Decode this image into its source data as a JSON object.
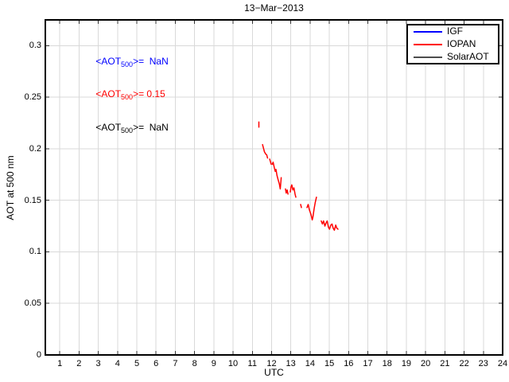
{
  "title": "13−Mar−2013",
  "axes": {
    "xlabel": "UTC",
    "ylabel": "AOT at 500 nm"
  },
  "legend": {
    "items": [
      {
        "label": "IGF",
        "color": "#0000ff"
      },
      {
        "label": "IOPAN",
        "color": "#ff0000"
      },
      {
        "label": "SolarAOT",
        "color": "#4d4d4d"
      }
    ]
  },
  "annotations": [
    {
      "prefix": "<AOT",
      "sub": "500",
      "suffix": ">=  NaN",
      "color": "#0000ff"
    },
    {
      "prefix": "<AOT",
      "sub": "500",
      "suffix": ">= 0.15",
      "color": "#ff0000"
    },
    {
      "prefix": "<AOT",
      "sub": "500",
      "suffix": ">=  NaN",
      "color": "#000000"
    }
  ],
  "colors": {
    "grid": "#d9d9d9",
    "axis_box": "#000000",
    "tick": "#333333",
    "background": "#ffffff"
  },
  "chart_data": {
    "type": "line",
    "title": "13-Mar-2013",
    "xlabel": "UTC",
    "ylabel": "AOT at 500 nm",
    "xlim": [
      0.25,
      24
    ],
    "ylim": [
      0,
      0.325
    ],
    "x_ticks": [
      1,
      2,
      3,
      4,
      5,
      6,
      7,
      8,
      9,
      10,
      11,
      12,
      13,
      14,
      15,
      16,
      17,
      18,
      19,
      20,
      21,
      22,
      23,
      24
    ],
    "y_tick_labels": [
      "0",
      "0.05",
      "0.1",
      "0.15",
      "0.2",
      "0.25",
      "0.3"
    ],
    "grid": true,
    "legend_position": "top-right",
    "series": [
      {
        "name": "IGF",
        "color": "#0000ff",
        "mean_aot_500": "NaN",
        "segments": []
      },
      {
        "name": "IOPAN",
        "color": "#ff0000",
        "mean_aot_500": "0.15",
        "segments": [
          [
            [
              11.34,
              0.226
            ],
            [
              11.34,
              0.221
            ]
          ],
          [
            [
              11.53,
              0.204
            ],
            [
              11.59,
              0.2
            ],
            [
              11.63,
              0.197
            ],
            [
              11.69,
              0.195
            ],
            [
              11.75,
              0.194
            ],
            [
              11.79,
              0.191
            ]
          ],
          [
            [
              11.9,
              0.19
            ],
            [
              11.98,
              0.185
            ]
          ],
          [
            [
              12.04,
              0.185
            ],
            [
              12.08,
              0.187
            ],
            [
              12.15,
              0.181
            ],
            [
              12.19,
              0.178
            ],
            [
              12.23,
              0.18
            ],
            [
              12.28,
              0.174
            ],
            [
              12.34,
              0.17
            ],
            [
              12.4,
              0.166
            ],
            [
              12.45,
              0.161
            ],
            [
              12.5,
              0.172
            ]
          ],
          [
            [
              12.72,
              0.161
            ],
            [
              12.76,
              0.157
            ],
            [
              12.81,
              0.16
            ],
            [
              12.85,
              0.156
            ]
          ],
          [
            [
              12.97,
              0.158
            ],
            [
              13.01,
              0.163
            ],
            [
              13.05,
              0.165
            ],
            [
              13.11,
              0.16
            ],
            [
              13.16,
              0.162
            ],
            [
              13.22,
              0.156
            ],
            [
              13.26,
              0.153
            ]
          ],
          [
            [
              13.51,
              0.146
            ],
            [
              13.55,
              0.143
            ]
          ],
          [
            [
              13.84,
              0.143
            ],
            [
              13.9,
              0.146
            ],
            [
              13.96,
              0.141
            ],
            [
              14.05,
              0.136
            ],
            [
              14.11,
              0.131
            ],
            [
              14.15,
              0.134
            ],
            [
              14.21,
              0.142
            ],
            [
              14.27,
              0.148
            ],
            [
              14.33,
              0.153
            ]
          ],
          [
            [
              14.58,
              0.13
            ],
            [
              14.64,
              0.127
            ],
            [
              14.7,
              0.13
            ],
            [
              14.77,
              0.125
            ],
            [
              14.83,
              0.128
            ],
            [
              14.89,
              0.13
            ],
            [
              14.95,
              0.124
            ],
            [
              15.01,
              0.122
            ],
            [
              15.08,
              0.126
            ],
            [
              15.14,
              0.127
            ],
            [
              15.2,
              0.123
            ],
            [
              15.26,
              0.121
            ],
            [
              15.33,
              0.126
            ],
            [
              15.39,
              0.123
            ],
            [
              15.45,
              0.122
            ]
          ]
        ]
      },
      {
        "name": "SolarAOT",
        "color": "#4d4d4d",
        "mean_aot_500": "NaN",
        "segments": []
      }
    ]
  }
}
